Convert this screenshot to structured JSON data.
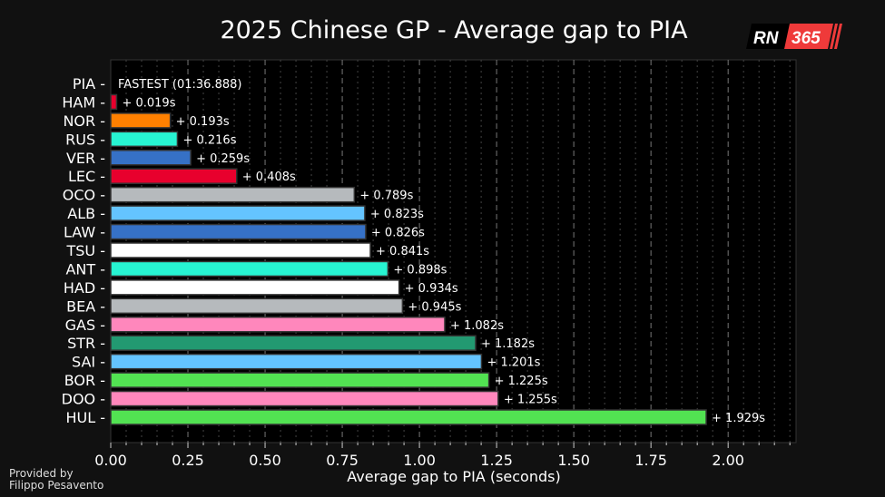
{
  "chart_data": {
    "type": "bar",
    "orientation": "horizontal",
    "title": "2025 Chinese GP - Average gap to PIA",
    "xlabel": "Average gap to PIA (seconds)",
    "ylabel": "",
    "xlim": [
      0,
      2.22
    ],
    "xticks": [
      "0.00",
      "0.25",
      "0.50",
      "0.75",
      "1.00",
      "1.25",
      "1.50",
      "1.75",
      "2.00"
    ],
    "grid": "vertical dashed major every 0.25, dotted minor every 0.05",
    "categories": [
      "PIA",
      "HAM",
      "NOR",
      "RUS",
      "VER",
      "LEC",
      "OCO",
      "ALB",
      "LAW",
      "TSU",
      "ANT",
      "HAD",
      "BEA",
      "GAS",
      "STR",
      "SAI",
      "BOR",
      "DOO",
      "HUL"
    ],
    "values": [
      0,
      0.019,
      0.193,
      0.216,
      0.259,
      0.408,
      0.789,
      0.823,
      0.826,
      0.841,
      0.898,
      0.934,
      0.945,
      1.082,
      1.182,
      1.201,
      1.225,
      1.255,
      1.929
    ],
    "labels": [
      "FASTEST (01:36.888)",
      "+ 0.019s",
      "+ 0.193s",
      "+ 0.216s",
      "+ 0.259s",
      "+ 0.408s",
      "+ 0.789s",
      "+ 0.823s",
      "+ 0.826s",
      "+ 0.841s",
      "+ 0.898s",
      "+ 0.934s",
      "+ 0.945s",
      "+ 1.082s",
      "+ 1.182s",
      "+ 1.201s",
      "+ 1.225s",
      "+ 1.255s",
      "+ 1.929s"
    ],
    "colors": [
      "#ff8000",
      "#e8002d",
      "#ff8000",
      "#27f4d2",
      "#3671c6",
      "#e8002d",
      "#b6babd",
      "#64c4ff",
      "#3671c6",
      "#ffffff",
      "#27f4d2",
      "#ffffff",
      "#b6babd",
      "#ff87bc",
      "#229971",
      "#64c4ff",
      "#52e252",
      "#ff87bc",
      "#52e252"
    ]
  },
  "logo": {
    "text_left": "RN",
    "text_right": "365",
    "accent": "#ef3a3a"
  },
  "credit": {
    "line1": "Provided by",
    "line2": "Filippo Pesavento"
  }
}
